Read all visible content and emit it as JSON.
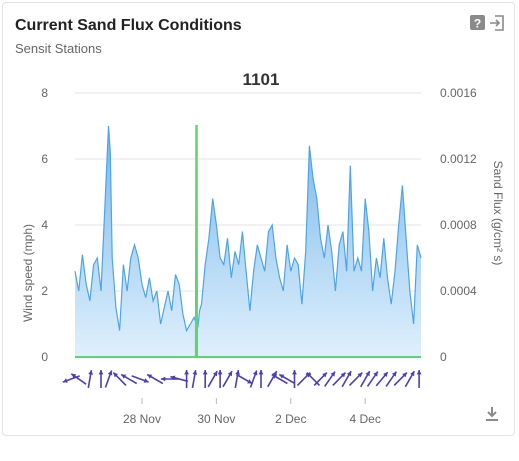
{
  "card": {
    "title": "Current Sand Flux Conditions",
    "subtitle": "Sensit Stations"
  },
  "icons": {
    "help": "help-icon",
    "exit": "exit-icon",
    "download": "download-icon"
  },
  "colors": {
    "wind_fill_top": "#6fb3ea",
    "wind_fill_bottom": "#dbeefc",
    "wind_line": "#4ea4e6",
    "flux_line": "#5fd36f",
    "arrow": "#4b3fb2",
    "grid": "#e6e6e6",
    "axis_text": "#666666"
  },
  "chart_data": {
    "type": "area",
    "title": "1101",
    "ylabel": "Wind speed (mph)",
    "y2label": "Sand Flux (g/cm² s)",
    "ylim": [
      0,
      8
    ],
    "y2lim": [
      0,
      0.0016
    ],
    "yticks": [
      "0",
      "2",
      "4",
      "6",
      "8"
    ],
    "y2ticks": [
      "0",
      "0.0004",
      "0.0008",
      "0.0012",
      "0.0016"
    ],
    "xticks": [
      "28 Nov",
      "30 Nov",
      "2 Dec",
      "4 Dec"
    ],
    "grid": true,
    "x_days": [
      26.2,
      26.3,
      26.4,
      26.5,
      26.6,
      26.7,
      26.8,
      26.9,
      27.0,
      27.1,
      27.15,
      27.2,
      27.3,
      27.4,
      27.5,
      27.6,
      27.7,
      27.8,
      27.9,
      28.0,
      28.1,
      28.2,
      28.3,
      28.4,
      28.5,
      28.6,
      28.7,
      28.8,
      28.9,
      29.0,
      29.1,
      29.2,
      29.3,
      29.4,
      29.5,
      29.55,
      29.6,
      29.7,
      29.8,
      29.9,
      30.0,
      30.1,
      30.2,
      30.3,
      30.4,
      30.5,
      30.6,
      30.7,
      30.8,
      30.9,
      31.0,
      31.1,
      31.2,
      31.3,
      31.4,
      31.5,
      31.6,
      31.7,
      31.8,
      31.9,
      32.0,
      32.1,
      32.2,
      32.3,
      32.4,
      32.5,
      32.6,
      32.7,
      32.8,
      32.9,
      33.0,
      33.1,
      33.2,
      33.3,
      33.4,
      33.5,
      33.6,
      33.7,
      33.8,
      33.9,
      34.0,
      34.1,
      34.2,
      34.3,
      34.4,
      34.5,
      34.6,
      34.7,
      34.8,
      34.9,
      35.0,
      35.1,
      35.2,
      35.3,
      35.4,
      35.5
    ],
    "series": [
      {
        "name": "Wind speed (mph)",
        "axis": "left",
        "values": [
          2.6,
          2.0,
          3.1,
          2.2,
          1.7,
          2.8,
          3.0,
          2.0,
          4.5,
          7.0,
          6.2,
          3.0,
          1.5,
          0.8,
          2.8,
          2.0,
          3.0,
          3.4,
          3.0,
          2.2,
          1.8,
          2.4,
          1.7,
          2.0,
          1.0,
          1.5,
          2.0,
          1.4,
          2.5,
          2.2,
          1.3,
          0.8,
          1.0,
          1.2,
          0.9,
          1.4,
          1.6,
          2.8,
          3.6,
          4.8,
          4.0,
          3.0,
          2.8,
          3.6,
          2.4,
          3.2,
          2.8,
          3.8,
          2.6,
          1.4,
          2.6,
          3.4,
          3.0,
          2.6,
          3.8,
          4.0,
          3.0,
          2.4,
          2.0,
          3.4,
          2.6,
          3.0,
          2.8,
          1.6,
          3.2,
          6.4,
          5.4,
          4.8,
          3.6,
          3.0,
          4.0,
          3.2,
          2.0,
          3.4,
          3.8,
          2.6,
          5.8,
          2.6,
          3.0,
          2.6,
          4.8,
          3.8,
          2.0,
          3.0,
          2.4,
          3.6,
          2.4,
          1.6,
          2.6,
          4.0,
          5.2,
          3.6,
          2.0,
          1.0,
          3.4,
          3.0
        ]
      },
      {
        "name": "Sand Flux (g/cm² s)",
        "axis": "right",
        "x": [
          26.2,
          29.45,
          29.46,
          29.47,
          29.48,
          35.5
        ],
        "values": [
          0,
          0,
          0.0014,
          0.0014,
          0,
          0
        ]
      }
    ],
    "wind_direction": {
      "x_days": [
        26.1,
        26.3,
        26.6,
        26.9,
        27.1,
        27.4,
        27.65,
        27.95,
        28.35,
        28.75,
        29.0,
        29.2,
        29.4,
        29.7,
        29.9,
        30.1,
        30.3,
        30.55,
        30.75,
        31.0,
        31.2,
        31.5,
        31.7,
        31.9,
        32.1,
        32.35,
        32.6,
        32.8,
        33.05,
        33.3,
        33.5,
        33.75,
        34.0,
        34.2,
        34.45,
        34.7,
        34.95,
        35.2,
        35.45
      ],
      "angles_deg": [
        250,
        305,
        10,
        0,
        20,
        315,
        300,
        110,
        300,
        270,
        285,
        0,
        10,
        0,
        30,
        0,
        30,
        10,
        120,
        20,
        0,
        30,
        300,
        300,
        0,
        45,
        315,
        45,
        35,
        45,
        30,
        45,
        30,
        35,
        40,
        35,
        45,
        30,
        0
      ]
    }
  }
}
